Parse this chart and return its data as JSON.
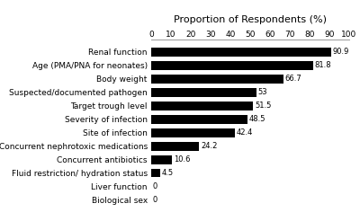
{
  "title": "Proportion of Respondents (%)",
  "categories": [
    "Biological sex",
    "Liver function",
    "Fluid restriction/ hydration status",
    "Concurrent antibiotics",
    "Concurrent nephrotoxic medications",
    "Site of infection",
    "Severity of infection",
    "Target trough level",
    "Suspected/documented pathogen",
    "Body weight",
    "Age (PMA/PNA for neonates)",
    "Renal function"
  ],
  "values": [
    0,
    0,
    4.5,
    10.6,
    24.2,
    42.4,
    48.5,
    51.5,
    53,
    66.7,
    81.8,
    90.9
  ],
  "bar_color": "#000000",
  "xlim": [
    0,
    100
  ],
  "xticks": [
    0,
    10,
    20,
    30,
    40,
    50,
    60,
    70,
    80,
    90,
    100
  ],
  "value_labels": [
    "0",
    "0",
    "4.5",
    "10.6",
    "24.2",
    "42.4",
    "48.5",
    "51.5",
    "53",
    "66.7",
    "81.8",
    "90.9"
  ],
  "background_color": "#ffffff",
  "title_fontsize": 8,
  "label_fontsize": 6.5,
  "tick_fontsize": 6.5,
  "value_fontsize": 6.0,
  "bar_height": 0.65
}
